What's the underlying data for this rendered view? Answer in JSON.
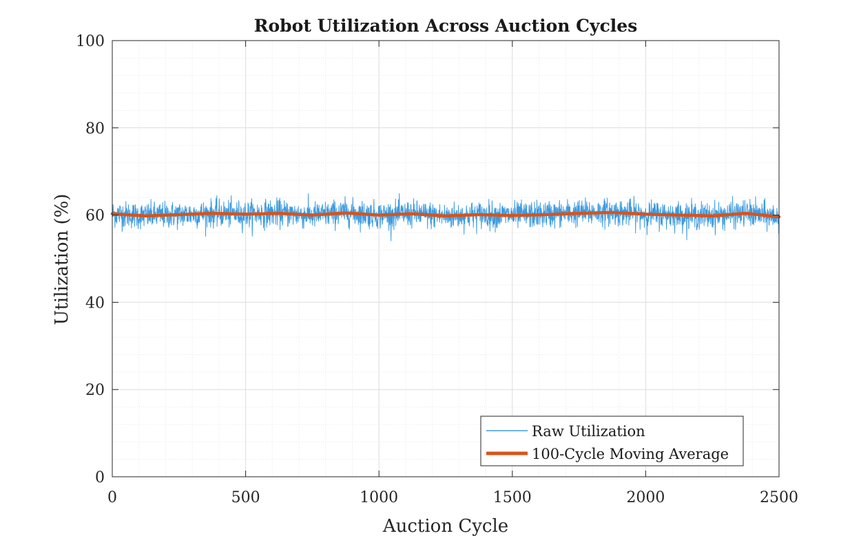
{
  "chart_data": {
    "type": "line",
    "title": "Robot Utilization Across Auction Cycles",
    "xlabel": "Auction Cycle",
    "ylabel": "Utilization (%)",
    "xlim": [
      0,
      2500
    ],
    "ylim": [
      0,
      100
    ],
    "xticks": [
      "0",
      "500",
      "1000",
      "1500",
      "2000",
      "2500"
    ],
    "yticks": [
      "0",
      "20",
      "40",
      "60",
      "80",
      "100"
    ],
    "grid": true,
    "minor_grid": true,
    "legend_position": "bottom-right",
    "series": [
      {
        "name": "Raw Utilization",
        "color": "#3d9be0",
        "style": "thin-line",
        "summary": {
          "mean": 60.0,
          "min": 54.0,
          "max": 65.0,
          "noise_std": 1.5,
          "n_points": 2500
        },
        "x": [
          0,
          125,
          250,
          375,
          500,
          625,
          750,
          875,
          1000,
          1125,
          1250,
          1375,
          1500,
          1625,
          1750,
          1875,
          2000,
          2125,
          2250,
          2375,
          2500
        ],
        "values": [
          60.3,
          59.8,
          60.1,
          60.4,
          60.2,
          60.5,
          59.9,
          60.6,
          60.0,
          60.3,
          59.7,
          60.1,
          59.9,
          60.2,
          60.5,
          60.7,
          60.2,
          60.0,
          59.8,
          60.4,
          59.5
        ]
      },
      {
        "name": "100-Cycle Moving Average",
        "color": "#d95319",
        "style": "thick-line",
        "x": [
          0,
          125,
          250,
          375,
          500,
          625,
          750,
          875,
          1000,
          1125,
          1250,
          1375,
          1500,
          1625,
          1750,
          1875,
          2000,
          2125,
          2250,
          2375,
          2500
        ],
        "values": [
          60.3,
          59.8,
          60.1,
          60.4,
          60.2,
          60.4,
          60.0,
          60.5,
          60.0,
          60.3,
          59.8,
          60.1,
          59.9,
          60.1,
          60.4,
          60.6,
          60.2,
          60.0,
          59.8,
          60.4,
          59.6
        ]
      }
    ]
  }
}
